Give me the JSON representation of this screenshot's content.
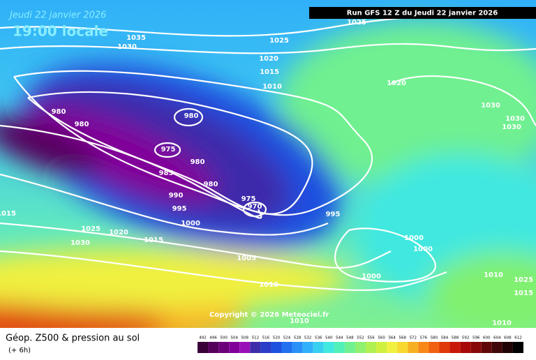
{
  "header": {
    "date": "Jeudi 22 janvier 2026",
    "time": "19:00 locale",
    "run": "Run GFS 12 Z du Jeudi 22 janvier 2026"
  },
  "copyright": "Copyright © 2026 Meteociel.fr",
  "legend": {
    "title": "Géop. Z500 & pression au sol",
    "lead": "(+ 6h)",
    "scale": {
      "values": [
        492,
        496,
        500,
        504,
        508,
        512,
        516,
        520,
        524,
        528,
        532,
        536,
        540,
        544,
        548,
        552,
        556,
        560,
        564,
        568,
        572,
        576,
        580,
        584,
        588,
        592,
        596,
        600,
        604,
        608,
        612
      ],
      "colors": [
        "#3a0038",
        "#55005a",
        "#6c0078",
        "#82009a",
        "#9a10b8",
        "#3c2caa",
        "#2a3cc8",
        "#1e50e0",
        "#2070f0",
        "#2a90f8",
        "#30b0f8",
        "#38d0f0",
        "#40e8e0",
        "#50f0b8",
        "#70f090",
        "#90f070",
        "#b0f050",
        "#d0f040",
        "#f0f040",
        "#f8d830",
        "#f8b020",
        "#f88818",
        "#f06010",
        "#e03808",
        "#c81808",
        "#a80808",
        "#880808",
        "#600808",
        "#400808",
        "#200404",
        "#000000"
      ]
    }
  },
  "isobar_labels": [
    1035,
    1030,
    1025,
    1025,
    1020,
    1015,
    1010,
    1020,
    1030,
    1030,
    1030,
    980,
    980,
    980,
    975,
    980,
    985,
    980,
    990,
    995,
    975,
    970,
    1000,
    995,
    1015,
    1025,
    1020,
    1030,
    1015,
    1005,
    1010,
    1000,
    1000,
    1000,
    1010,
    1010,
    1025,
    1010,
    1015
  ]
}
